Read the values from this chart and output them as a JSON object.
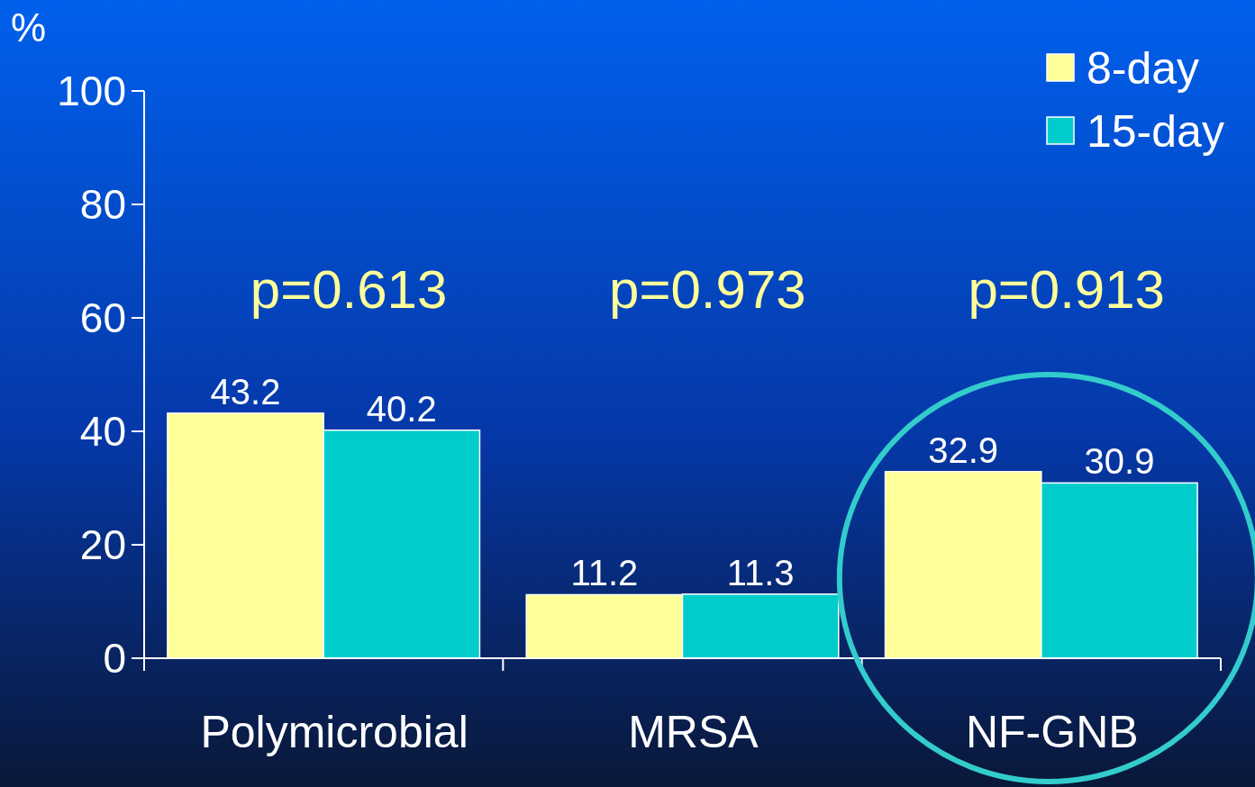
{
  "chart_data": {
    "type": "bar",
    "ylabel": "%",
    "categories": [
      "Polymicrobial",
      "MRSA",
      "NF-GNB"
    ],
    "series": [
      {
        "name": "8-day",
        "color": "#ffff99",
        "values": [
          43.2,
          11.2,
          32.9
        ]
      },
      {
        "name": "15-day",
        "color": "#00cccc",
        "values": [
          40.2,
          11.3,
          30.9
        ]
      }
    ],
    "ylim": [
      0,
      100
    ],
    "yticks": [
      0,
      20,
      40,
      60,
      80,
      100
    ],
    "data_labels": true,
    "legend": "top right",
    "grid": false,
    "annotations": [
      "p=0.613",
      "p=0.973",
      "p=0.913"
    ]
  }
}
